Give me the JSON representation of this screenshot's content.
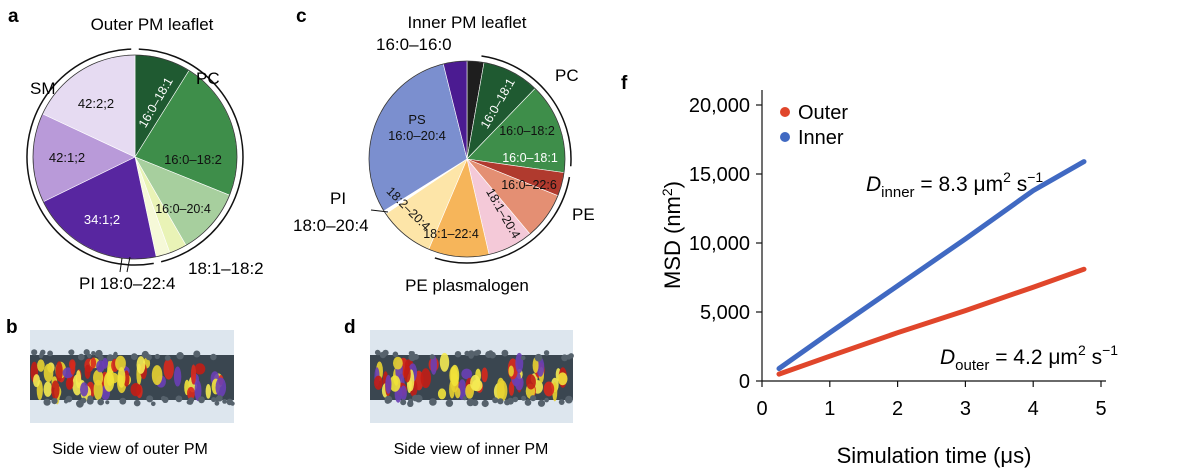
{
  "panels": {
    "a": {
      "letter": "a",
      "title": "Outer PM leaflet",
      "slices": [
        {
          "label": "16:0–18:1",
          "color": "#1f5a31",
          "text_color": "#ffffff",
          "rotated": true
        },
        {
          "label": "16:0–18:2",
          "color": "#3e8e4a",
          "text_color": "#111111"
        },
        {
          "label": "16:0–20:4",
          "color": "#a7cf9e",
          "text_color": "#111111"
        },
        {
          "label": "",
          "color": "#e9f3b6",
          "text_color": "#111111"
        },
        {
          "label": "",
          "color": "#f6f9d8",
          "text_color": "#111111"
        },
        {
          "label": "34:1;2",
          "color": "#5826a0",
          "text_color": "#ffffff"
        },
        {
          "label": "42:1;2",
          "color": "#b99ad9",
          "text_color": "#111111"
        },
        {
          "label": "42:2;2",
          "color": "#e6dbf2",
          "text_color": "#111111"
        }
      ],
      "outside_labels": {
        "pc": "PC",
        "sm": "SM",
        "pi": "PI 18:0–22:4",
        "small": "18:1–18:2"
      }
    },
    "b": {
      "letter": "b",
      "caption": "Side view of outer PM"
    },
    "c": {
      "letter": "c",
      "title": "Inner PM leaflet",
      "slices": [
        {
          "label": "",
          "color": "#1e1e1e",
          "text_color": "#ffffff"
        },
        {
          "label": "16:0–18:1",
          "color": "#1f5a31",
          "text_color": "#ffffff",
          "rotated": true
        },
        {
          "label": "16:0–18:2",
          "color": "#3e8e4a",
          "text_color": "#111111"
        },
        {
          "label": "16:0–18:1",
          "color": "#b03a2e",
          "text_color": "#ffffff"
        },
        {
          "label": "16:0–22:6",
          "color": "#e48f73",
          "text_color": "#111111"
        },
        {
          "label": "18:1–20:4",
          "color": "#f4c9d8",
          "text_color": "#111111",
          "rotated": true
        },
        {
          "label": "18:1–22:4",
          "color": "#f6b55a",
          "text_color": "#111111"
        },
        {
          "label": "18:2–20:4",
          "color": "#fde5a8",
          "text_color": "#111111",
          "rotated": true
        },
        {
          "label": "",
          "color": "#ffffff",
          "text_color": "#111111"
        },
        {
          "label": "PS\n16:0–20:4",
          "color": "#7b8fcf",
          "text_color": "#111111"
        },
        {
          "label": "",
          "color": "#4b1b91",
          "text_color": "#ffffff"
        }
      ],
      "outside_labels": {
        "top": "16:0–16:0",
        "pc": "PC",
        "pe": "PE",
        "pi_line1": "PI",
        "pi_line2": "18:0–20:4",
        "bottom": "PE plasmalogen"
      }
    },
    "d": {
      "letter": "d",
      "caption": "Side view of inner PM"
    },
    "f": {
      "letter": "f",
      "eq_inner": {
        "symbol": "D",
        "sub": "inner",
        "value": " = 8.3 μm",
        "sup": "2",
        "unit_tail": " s",
        "sup2": "−1"
      },
      "eq_outer": {
        "symbol": "D",
        "sub": "outer",
        "value": " = 4.2 μm",
        "sup": "2",
        "unit_tail": " s",
        "sup2": "−1"
      }
    }
  },
  "chart_data": {
    "type": "line",
    "xlabel": "Simulation time (μs)",
    "ylabel": "MSD (nm²)",
    "ylabel_main": "MSD (nm",
    "ylabel_sup": "2",
    "ylabel_tail": ")",
    "xlim": [
      0,
      5
    ],
    "ylim": [
      0,
      20000
    ],
    "xticks": [
      0,
      1,
      2,
      3,
      4,
      5
    ],
    "xtick_labels": [
      "0",
      "1",
      "2",
      "3",
      "4",
      "5"
    ],
    "yticks": [
      0,
      5000,
      10000,
      15000,
      20000
    ],
    "ytick_labels": [
      "0",
      "5,000",
      "10,000",
      "15,000",
      "20,000"
    ],
    "grid": false,
    "legend_position": "top-left",
    "series": [
      {
        "name": "Outer",
        "color": "#e0462b",
        "x": [
          0.25,
          1.0,
          2.0,
          3.0,
          4.0,
          4.75
        ],
        "y": [
          500,
          1800,
          3500,
          5100,
          6800,
          8100
        ]
      },
      {
        "name": "Inner",
        "color": "#4069c2",
        "x": [
          0.25,
          1.0,
          2.0,
          3.0,
          4.0,
          4.75
        ],
        "y": [
          900,
          3500,
          6900,
          10300,
          13800,
          15900
        ]
      }
    ]
  }
}
